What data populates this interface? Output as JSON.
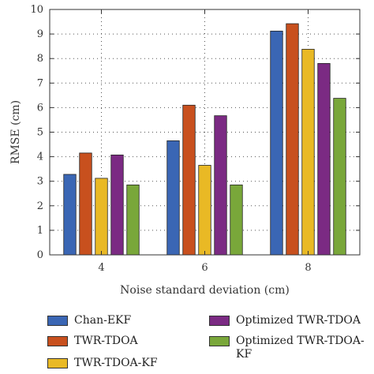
{
  "chart_data": {
    "type": "bar",
    "xlabel": "Noise standard deviation (cm)",
    "ylabel": "RMSE (cm)",
    "ylim": [
      0,
      10
    ],
    "yticks": [
      0,
      1,
      2,
      3,
      4,
      5,
      6,
      7,
      8,
      9,
      10
    ],
    "categories": [
      "4",
      "6",
      "8"
    ],
    "grid": true,
    "legend_position": "bottom",
    "series": [
      {
        "name": "Chan-EKF",
        "color": "#3a66b4",
        "values": [
          3.28,
          4.65,
          9.12
        ]
      },
      {
        "name": "TWR-TDOA",
        "color": "#c8501e",
        "values": [
          4.15,
          6.1,
          9.42
        ]
      },
      {
        "name": "TWR-TDOA-KF",
        "color": "#e9b925",
        "values": [
          3.12,
          3.65,
          8.38
        ]
      },
      {
        "name": "Optimized TWR-TDOA",
        "color": "#7b2a83",
        "values": [
          4.07,
          5.67,
          7.8
        ]
      },
      {
        "name": "Optimized TWR-TDOA-KF",
        "color": "#79a73a",
        "values": [
          2.85,
          2.85,
          6.38
        ]
      }
    ]
  }
}
